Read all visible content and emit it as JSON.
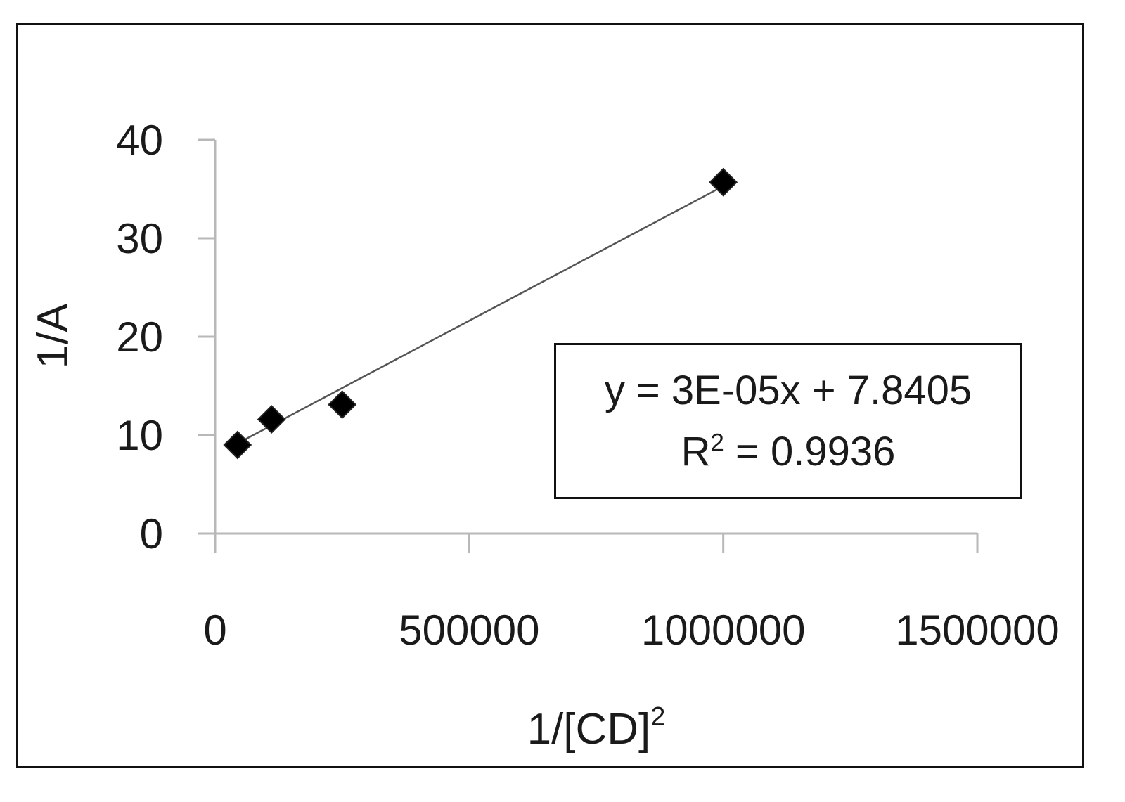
{
  "chart_data": {
    "type": "scatter",
    "xlabel": "1/[CD]",
    "xlabel_sup": "2",
    "ylabel": "1/A",
    "xlim": [
      0,
      1500000
    ],
    "ylim": [
      0,
      40
    ],
    "x_ticks": [
      0,
      500000,
      1000000,
      1500000
    ],
    "x_tick_labels": [
      "0",
      "500000",
      "1000000",
      "1500000"
    ],
    "y_ticks": [
      0,
      10,
      20,
      30,
      40
    ],
    "y_tick_labels": [
      "0",
      "10",
      "20",
      "30",
      "40"
    ],
    "grid": false,
    "series": [
      {
        "marker": "diamond",
        "color": "#000000",
        "points": [
          {
            "x": 44000,
            "y": 9.0
          },
          {
            "x": 111000,
            "y": 11.6
          },
          {
            "x": 250000,
            "y": 13.1
          },
          {
            "x": 1000000,
            "y": 35.7
          }
        ]
      }
    ],
    "trendline": {
      "type": "linear",
      "x_range": [
        44000,
        1000000
      ],
      "start_y": 9.15,
      "end_y": 35.3,
      "color": "#555555"
    },
    "annotation": {
      "equation": "y = 3E-05x + 7.8405",
      "r2_prefix": "R",
      "r2_sup": "2",
      "r2_value": " = 0.9936"
    }
  }
}
